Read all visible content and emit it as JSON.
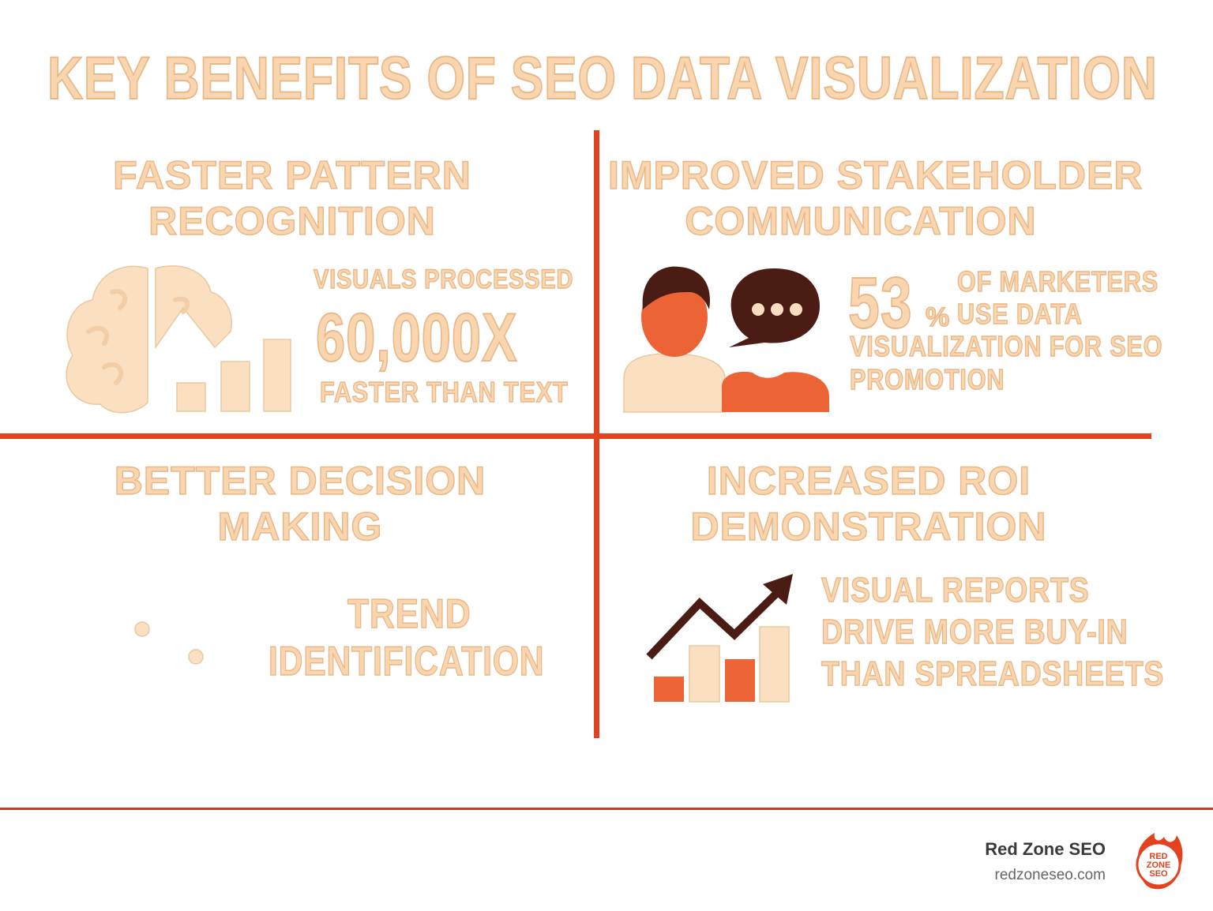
{
  "title": "KEY BENEFITS OF SEO DATA VISUALIZATION",
  "colors": {
    "accent_red": "#e2421f",
    "peach_text": "#fad6b0",
    "peach_stroke": "#e8b888",
    "icon_cream": "#fae0c0",
    "icon_orange": "#ec6435",
    "icon_dark": "#4a1c14"
  },
  "panels": {
    "pattern": {
      "heading_line1": "FASTER PATTERN",
      "heading_line2": "RECOGNITION",
      "stat_line1": "VISUALS PROCESSED",
      "stat_big": "60,000x",
      "stat_line3": "FASTER THAN TEXT",
      "icon": "brain-chart-icon"
    },
    "communication": {
      "heading_line1": "IMPROVED STAKEHOLDER",
      "heading_line2": "COMMUNICATION",
      "stat_number": "53",
      "stat_percent": "%",
      "stat_line1": "OF MARKETERS",
      "stat_line2": "USE DATA",
      "stat_line3": "VISUALIZATION FOR SEO",
      "stat_line4": "PROMOTION",
      "icon": "people-speech-icon"
    },
    "decision": {
      "heading_line1": "BETTER DECISION",
      "heading_line2": "MAKING",
      "stat_line1": "TREND",
      "stat_line2": "IDENTIFICATION",
      "icon": "dots-icon"
    },
    "roi": {
      "heading_line1": "INCREASED ROI",
      "heading_line2": "DEMONSTRATION",
      "stat_line1": "VISUAL REPORTS",
      "stat_line2": "DRIVE MORE BUY-IN",
      "stat_line3": "THAN SPREADSHEETS",
      "icon": "growth-chart-icon"
    }
  },
  "footer": {
    "brand_name": "Red Zone SEO",
    "brand_url": "redzoneseo.com",
    "logo_text": "RED ZONE SEO",
    "logo_icon": "flame-logo-icon"
  }
}
